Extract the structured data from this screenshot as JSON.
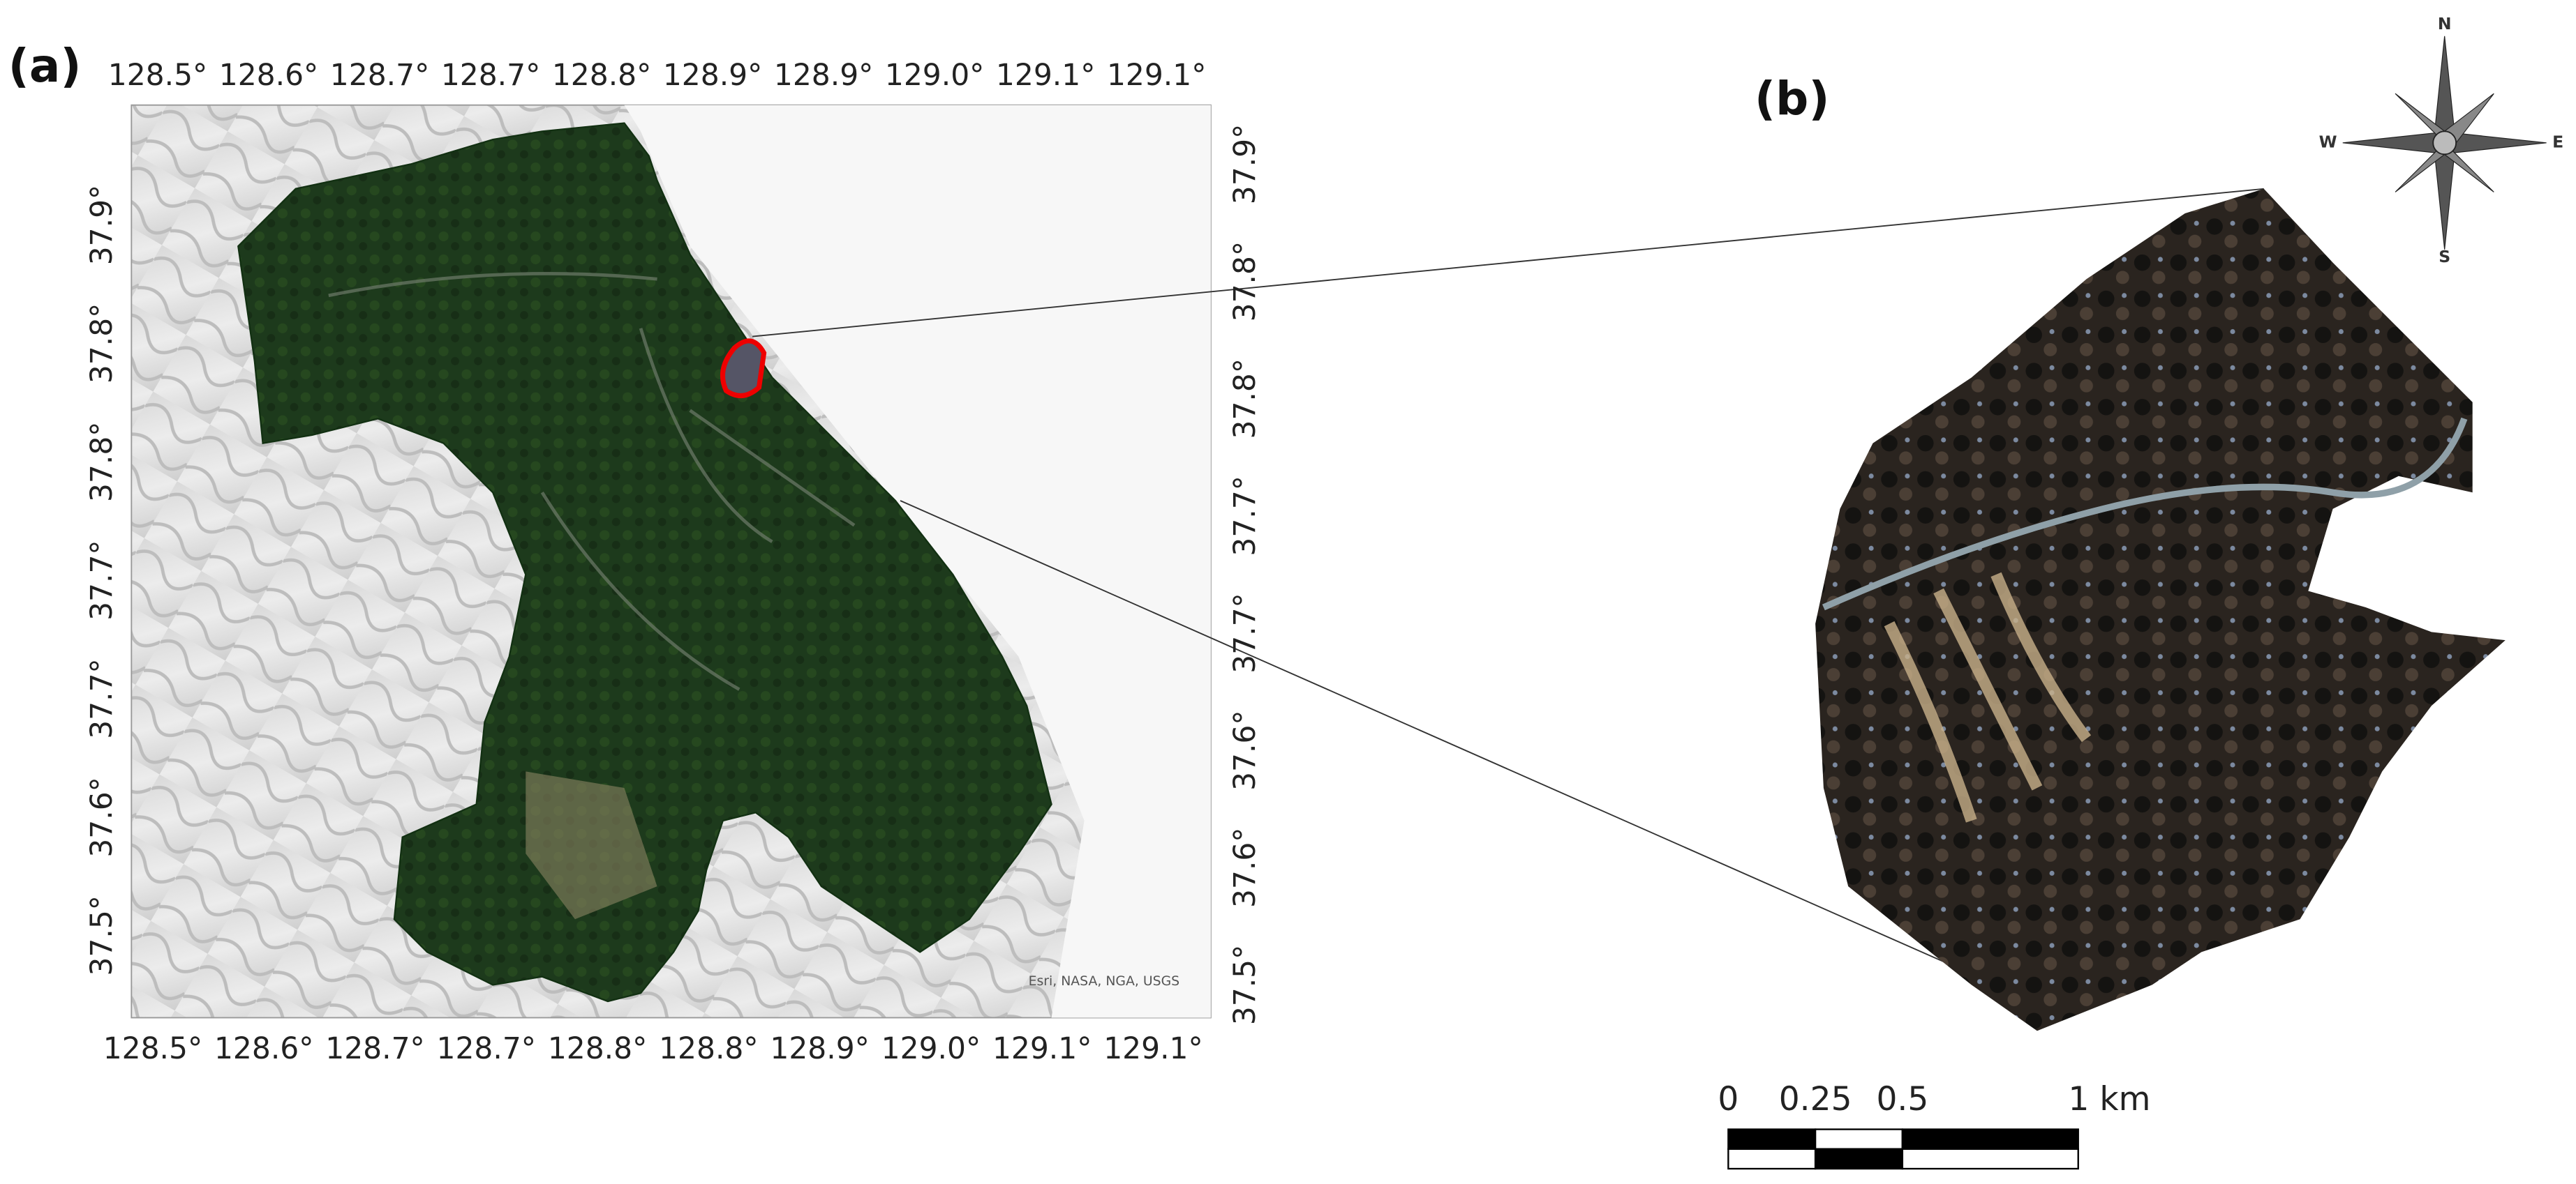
{
  "panel_a": {
    "label": "(a)",
    "top_ticks": [
      "128.5°",
      "128.6°",
      "128.7°",
      "128.7°",
      "128.8°",
      "128.9°",
      "128.9°",
      "129.0°",
      "129.1°",
      "129.1°"
    ],
    "bottom_ticks": [
      "128.5°",
      "128.6°",
      "128.7°",
      "128.7°",
      "128.8°",
      "128.8°",
      "128.9°",
      "129.0°",
      "129.1°",
      "129.1°"
    ],
    "left_ticks": [
      "37.9°",
      "37.8°",
      "37.8°",
      "37.7°",
      "37.7°",
      "37.6°",
      "37.5°"
    ],
    "right_ticks": [
      "37.9°",
      "37.8°",
      "37.8°",
      "37.7°",
      "37.7°",
      "37.6°",
      "37.6°",
      "37.5°"
    ],
    "attribution": "Esri, NASA, NGA, USGS"
  },
  "panel_b": {
    "label": "(b)",
    "compass": {
      "north": "N",
      "south": "S",
      "east": "E",
      "west": "W"
    },
    "scale_bar": {
      "labels": [
        "0",
        "0.25",
        "0.5",
        "1 km"
      ]
    }
  }
}
